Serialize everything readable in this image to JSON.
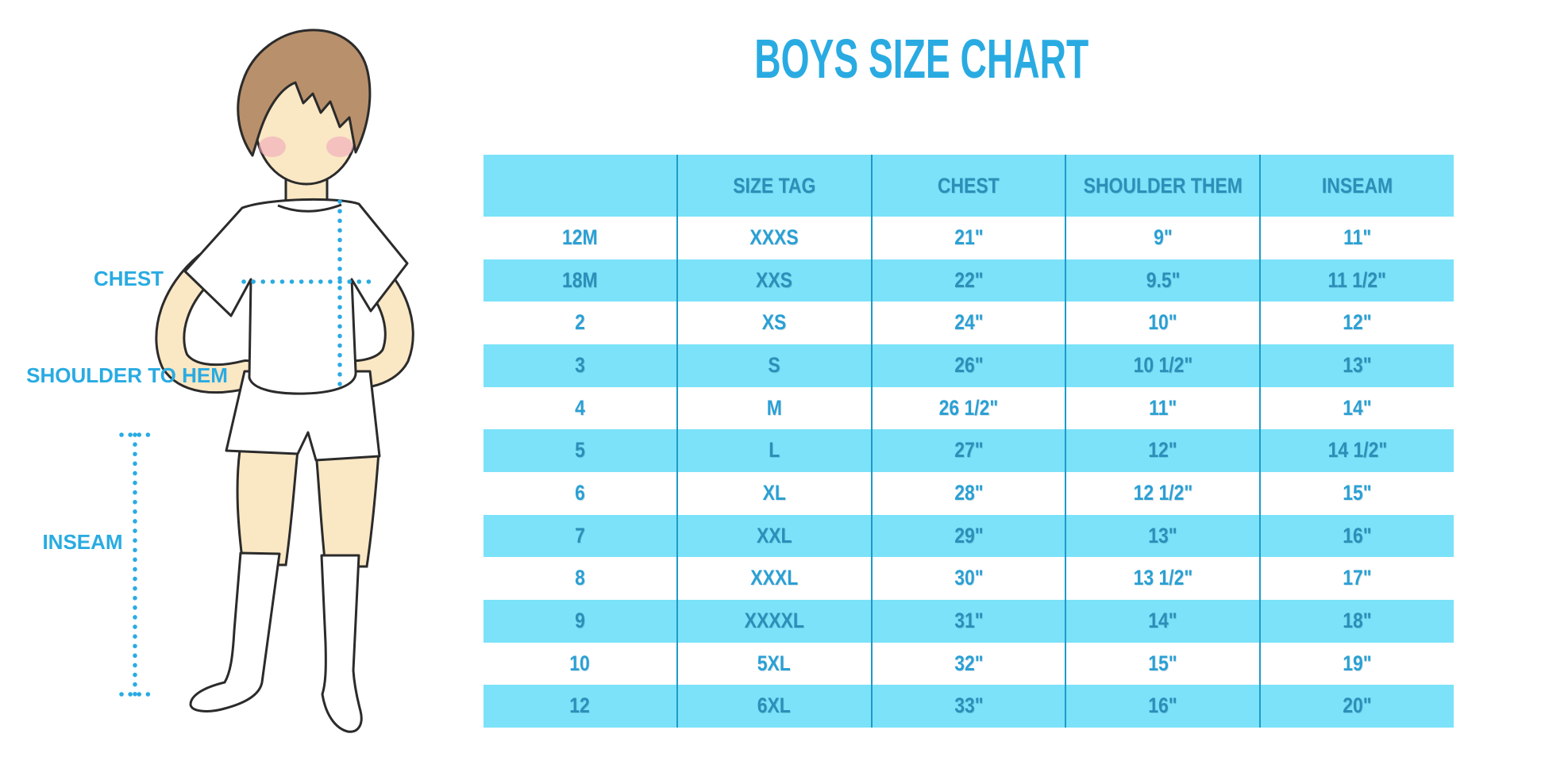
{
  "title": "BOYS SIZE CHART",
  "figure": {
    "labels": {
      "chest": "CHEST",
      "shoulder_to_hem": "SHOULDER TO HEM",
      "inseam": "INSEAM"
    }
  },
  "theme": {
    "accent_blue": "#29ABE2",
    "stripe_blue": "#7BE2F9",
    "cell_text": "#2AA0D4",
    "cell_text_on_stripe": "#2B8FB8",
    "divider_blue": "#1D9AC9",
    "skin": "#FAE7C4",
    "hair": "#B8906B",
    "cheek": "#F0A8BC",
    "outline": "#2B2B2B"
  },
  "chart_data": {
    "type": "table",
    "title": "BOYS SIZE CHART",
    "columns": [
      "",
      "SIZE TAG",
      "CHEST",
      "SHOULDER THEM",
      "INSEAM"
    ],
    "rows": [
      [
        "12M",
        "XXXS",
        "21\"",
        "9\"",
        "11\""
      ],
      [
        "18M",
        "XXS",
        "22\"",
        "9.5\"",
        "11 1/2\""
      ],
      [
        "2",
        "XS",
        "24\"",
        "10\"",
        "12\""
      ],
      [
        "3",
        "S",
        "26\"",
        "10 1/2\"",
        "13\""
      ],
      [
        "4",
        "M",
        "26 1/2\"",
        "11\"",
        "14\""
      ],
      [
        "5",
        "L",
        "27\"",
        "12\"",
        "14 1/2\""
      ],
      [
        "6",
        "XL",
        "28\"",
        "12 1/2\"",
        "15\""
      ],
      [
        "7",
        "XXL",
        "29\"",
        "13\"",
        "16\""
      ],
      [
        "8",
        "XXXL",
        "30\"",
        "13 1/2\"",
        "17\""
      ],
      [
        "9",
        "XXXXL",
        "31\"",
        "14\"",
        "18\""
      ],
      [
        "10",
        "5XL",
        "32\"",
        "15\"",
        "19\""
      ],
      [
        "12",
        "6XL",
        "33\"",
        "16\"",
        "20\""
      ]
    ],
    "layout": {
      "header_position": "top",
      "row_striping": "alternating white / light-blue, header light-blue",
      "grid": "vertical dividers between columns only"
    }
  }
}
